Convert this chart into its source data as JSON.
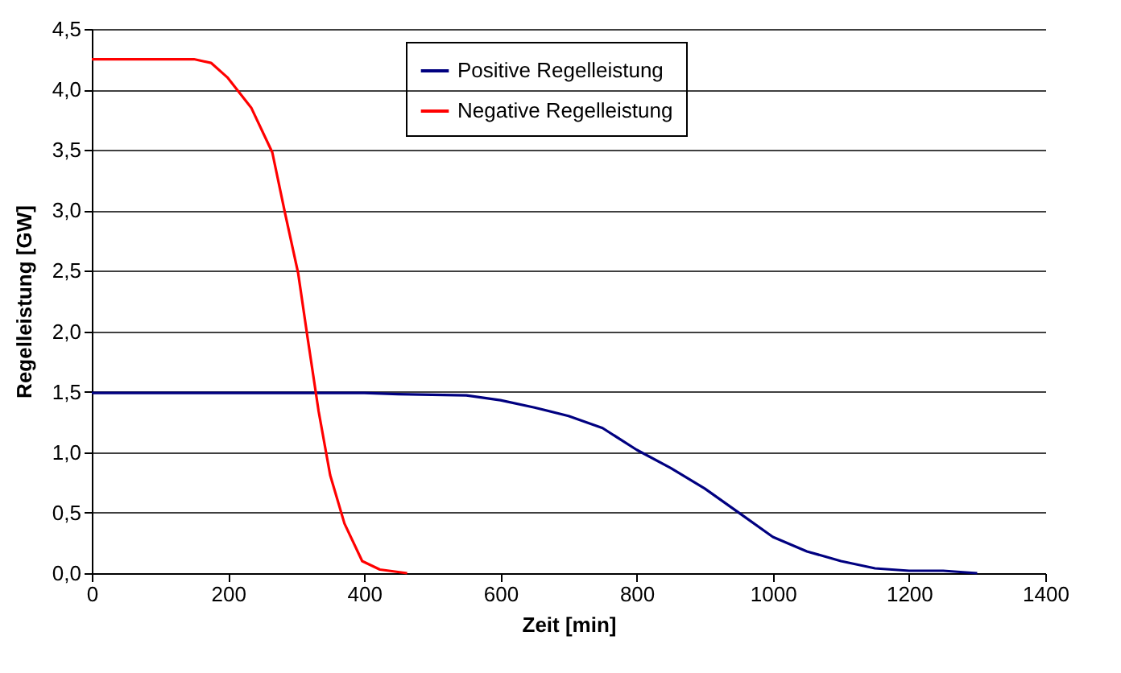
{
  "chart_data": {
    "type": "line",
    "xlabel": "Zeit [min]",
    "ylabel": "Regelleistung [GW]",
    "xlim": [
      0,
      1400
    ],
    "xticks": [
      0,
      200,
      400,
      600,
      800,
      1000,
      1200,
      1400
    ],
    "ylim": [
      0,
      4.5
    ],
    "yticks": [
      {
        "value": 0,
        "label": "0,0"
      },
      {
        "value": 0.5,
        "label": "0,5"
      },
      {
        "value": 1,
        "label": "1,0"
      },
      {
        "value": 1.5,
        "label": "1,5"
      },
      {
        "value": 2,
        "label": "2,0"
      },
      {
        "value": 2.5,
        "label": "2,5"
      },
      {
        "value": 3,
        "label": "3,0"
      },
      {
        "value": 3.5,
        "label": "3,5"
      },
      {
        "value": 4,
        "label": "4,0"
      },
      {
        "value": 4.5,
        "label": "4,5"
      }
    ],
    "grid": "y",
    "legend": "top",
    "marker": "none",
    "line_style": "solid",
    "series": [
      {
        "name": "Positive Regelleistung",
        "color": "#000080",
        "x": [
          0,
          200,
          400,
          450,
          550,
          600,
          650,
          700,
          750,
          800,
          850,
          900,
          950,
          1000,
          1050,
          1100,
          1150,
          1200,
          1250,
          1300
        ],
        "values": [
          1.49,
          1.49,
          1.49,
          1.48,
          1.47,
          1.43,
          1.37,
          1.3,
          1.2,
          1.02,
          0.87,
          0.7,
          0.5,
          0.3,
          0.18,
          0.1,
          0.04,
          0.02,
          0.02,
          0
        ]
      },
      {
        "name": "Negative Regelleistung",
        "color": "#ff0000",
        "x": [
          0,
          150,
          175,
          199,
          234,
          265,
          284,
          303,
          317,
          333,
          350,
          371,
          397,
          423,
          463
        ],
        "values": [
          4.25,
          4.25,
          4.22,
          4.1,
          3.85,
          3.48,
          2.97,
          2.48,
          1.94,
          1.34,
          0.81,
          0.41,
          0.1,
          0.03,
          0
        ]
      }
    ]
  }
}
